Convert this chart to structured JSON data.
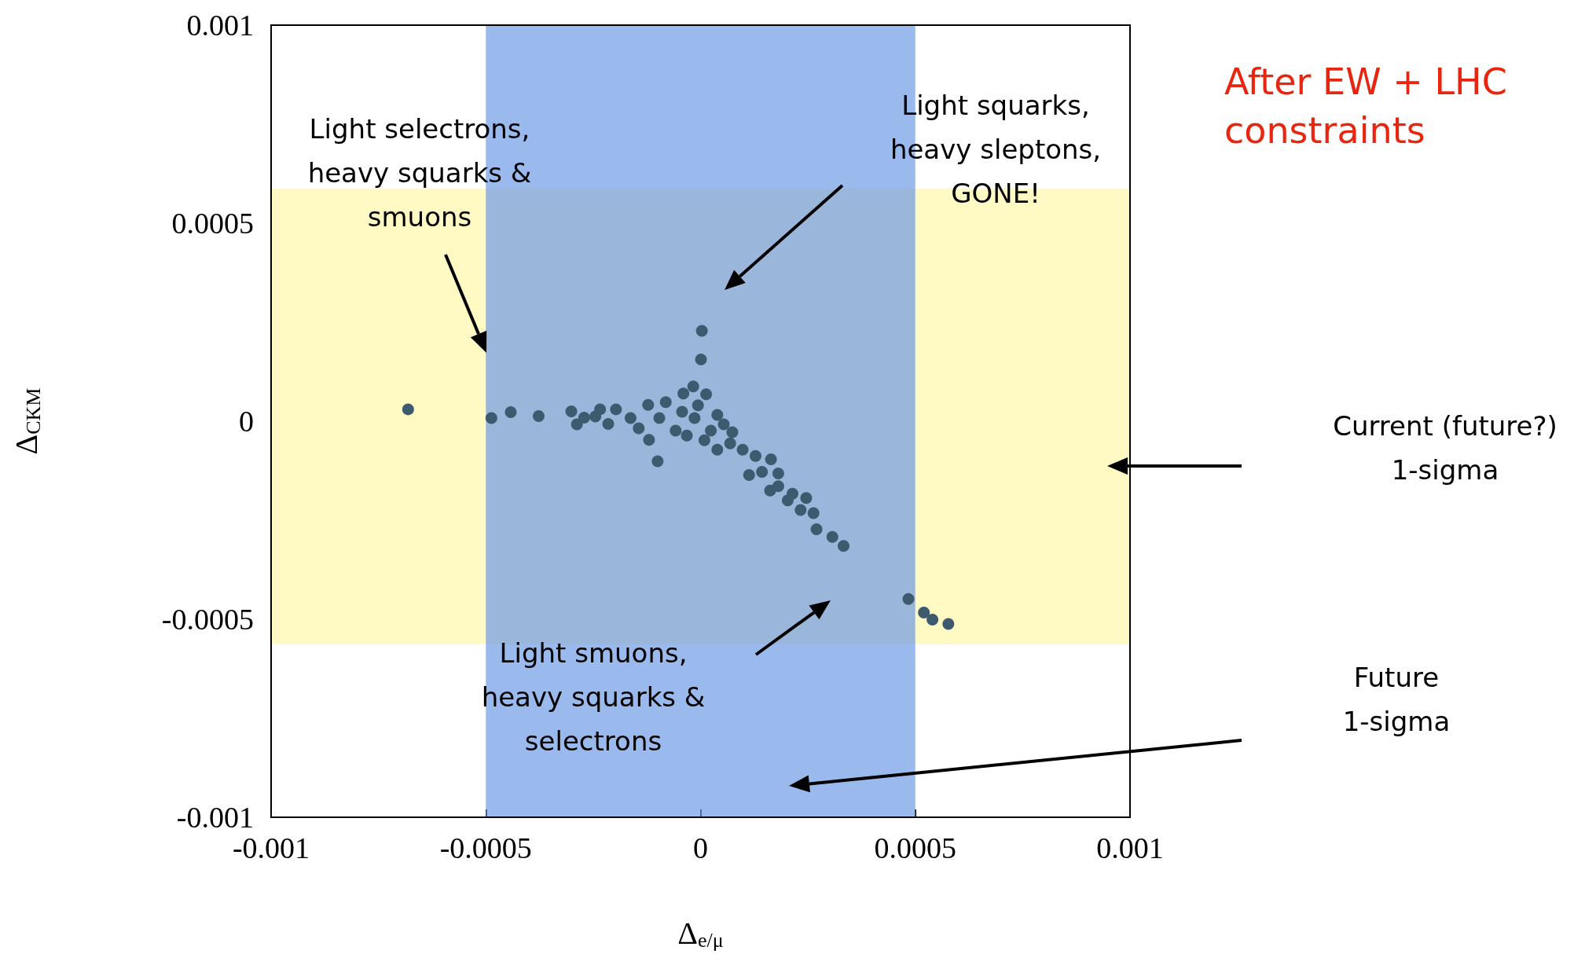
{
  "chart_data": {
    "type": "scatter",
    "title": "After EW + LHC\nconstraints",
    "xlabel": "Δ$_{e/μ}$",
    "ylabel": "Δ$_{CKM}$",
    "xlim": [
      -0.001,
      0.001
    ],
    "ylim": [
      -0.001,
      0.001
    ],
    "xticks": [
      -0.001,
      -0.0005,
      0,
      0.0005,
      0.001
    ],
    "yticks": [
      -0.001,
      -0.0005,
      0,
      0.0005,
      0.001
    ],
    "grid": false,
    "marker": "circle",
    "series": [
      {
        "color": "#3d5a6e",
        "x": [
          -0.000681,
          -0.000487,
          -0.000442,
          -0.000377,
          -0.000301,
          -0.000288,
          -0.000271,
          -0.000245,
          -0.000234,
          -0.000215,
          -0.000197,
          -0.000163,
          -0.000144,
          -0.000122,
          -0.00012,
          -0.0001,
          -9.6e-05,
          -8.1e-05,
          -5.8e-05,
          -4.3e-05,
          -4e-05,
          -3.2e-05,
          -1.7e-05,
          -1.4e-05,
          -6e-06,
          1e-06,
          3e-06,
          9e-06,
          1.3e-05,
          2.4e-05,
          3.9e-05,
          3.9e-05,
          5.4e-05,
          6.9e-05,
          7.4e-05,
          9.8e-05,
          0.000113,
          0.000128,
          0.000143,
          0.000162,
          0.000164,
          0.000181,
          0.000181,
          0.000203,
          0.000214,
          0.000233,
          0.000246,
          0.000263,
          0.00027,
          0.000307,
          0.000333,
          0.000484,
          0.00052,
          0.00054,
          0.000577
        ],
        "values": [
          3e-05,
          8e-06,
          2.3e-05,
          1.3e-05,
          2.5e-05,
          -8e-06,
          9e-06,
          1.2e-05,
          3e-05,
          -7e-06,
          3e-05,
          8e-06,
          -1.8e-05,
          4.1e-05,
          -4.7e-05,
          -0.000101,
          8e-06,
          4.8e-05,
          -2.4e-05,
          2.4e-05,
          7e-05,
          -3.6e-05,
          8.8e-05,
          8e-06,
          4e-05,
          0.000156,
          0.000228,
          -4.8e-05,
          6.8e-05,
          -2.4e-05,
          1.6e-05,
          -7.2e-05,
          -8e-06,
          -5.6e-05,
          -2.8e-05,
          -7.2e-05,
          -0.000136,
          -8.8e-05,
          -0.000128,
          -0.000175,
          -9.6e-05,
          -0.000132,
          -0.000164,
          -0.0002,
          -0.000183,
          -0.000224,
          -0.000194,
          -0.000232,
          -0.000273,
          -0.000292,
          -0.000315,
          -0.000449,
          -0.000483,
          -0.000501,
          -0.000512
        ]
      }
    ],
    "bands": [
      {
        "axis": "y",
        "from": -0.000563,
        "to": 0.000587,
        "color": "#fff9c4"
      },
      {
        "axis": "x",
        "from": -0.0005,
        "to": 0.0005,
        "color": "#6f9be6"
      }
    ],
    "annotations": [
      "Light selectrons,\nheavy squarks &\nsmuons",
      "Light squarks,\nheavy sleptons,\nGONE!",
      "Light smuons,\nheavy squarks &\nselectrons",
      "Current (future?)\n1-sigma",
      "Future\n1-sigma"
    ]
  }
}
